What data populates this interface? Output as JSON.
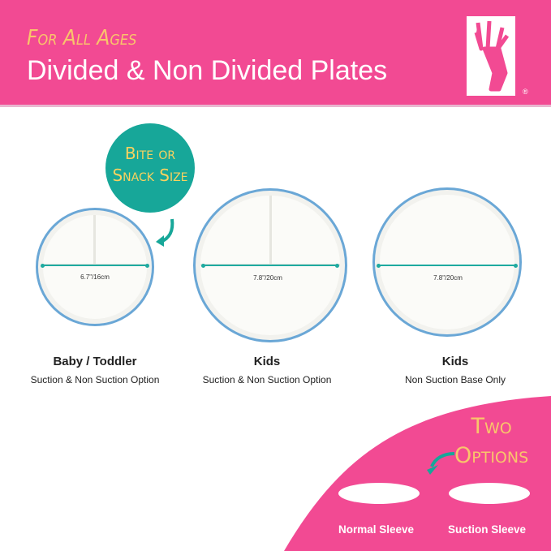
{
  "header": {
    "tagline": "For All Ages",
    "title": "Divided & Non Divided Plates",
    "registered": "®"
  },
  "badge": {
    "line1": "Bite or",
    "line2": "Snack Size"
  },
  "plates": [
    {
      "size": "6.7\"/16cm",
      "name": "Baby / Toddler",
      "option": "Suction & Non Suction Option",
      "divided": true
    },
    {
      "size": "7.8\"/20cm",
      "name": "Kids",
      "option": "Suction & Non Suction Option",
      "divided": true
    },
    {
      "size": "7.8\"/20cm",
      "name": "Kids",
      "option": "Non Suction Base Only",
      "divided": false
    }
  ],
  "options": {
    "line1": "Two",
    "line2": "Options",
    "sleeves": [
      "Normal Sleeve",
      "Suction Sleeve"
    ]
  },
  "colors": {
    "pink": "#f24a93",
    "teal": "#17a799",
    "yellow": "#f9c56b",
    "rim": "#6aa7d6"
  }
}
